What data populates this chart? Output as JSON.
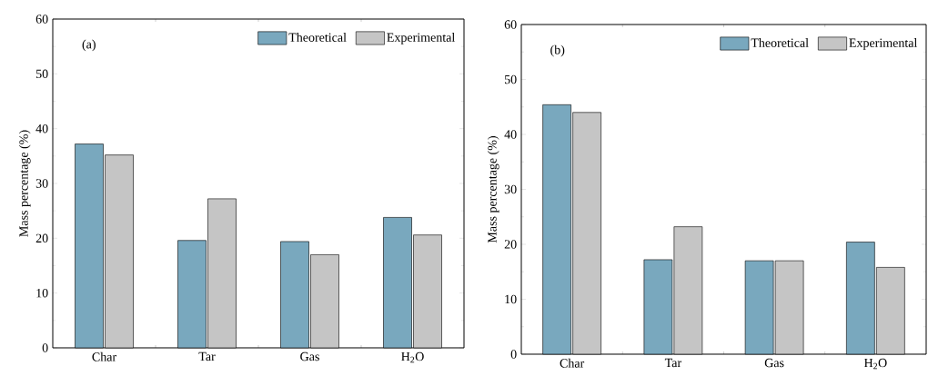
{
  "chart_data": [
    {
      "type": "bar",
      "categories": [
        "Char",
        "Tar",
        "Gas",
        "H$_{2}$O"
      ],
      "ylabel": "Mass percentage (%)",
      "ylim": [
        0,
        60
      ],
      "yticks": [
        0,
        10,
        20,
        30,
        40,
        50,
        60
      ],
      "legend": "top right",
      "annotations": [
        "(a)"
      ],
      "series": [
        {
          "name": "Theoretical",
          "color": "#79a8be",
          "values": [
            37.2,
            19.6,
            19.4,
            23.8
          ]
        },
        {
          "name": "Experimental",
          "color": "#c5c5c5",
          "values": [
            35.2,
            27.2,
            17.0,
            20.6
          ]
        }
      ]
    },
    {
      "type": "bar",
      "categories": [
        "Char",
        "Tar",
        "Gas",
        "H$_{2}$O"
      ],
      "ylabel": "Mass percentage (%)",
      "ylim": [
        0,
        60
      ],
      "yticks": [
        0,
        10,
        20,
        30,
        40,
        50,
        60
      ],
      "legend": "top right",
      "annotations": [
        "(b)"
      ],
      "series": [
        {
          "name": "Theoretical",
          "color": "#79a8be",
          "values": [
            45.4,
            17.2,
            17.0,
            20.4
          ]
        },
        {
          "name": "Experimental",
          "color": "#c5c5c5",
          "values": [
            44.0,
            23.2,
            17.0,
            15.8
          ]
        }
      ]
    }
  ]
}
